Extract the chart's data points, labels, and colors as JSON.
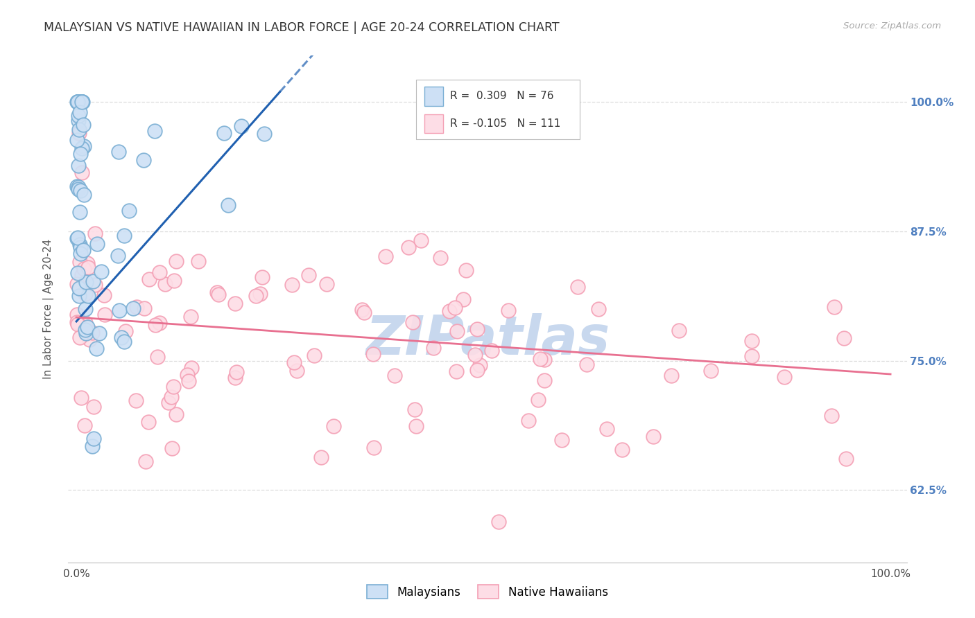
{
  "title": "MALAYSIAN VS NATIVE HAWAIIAN IN LABOR FORCE | AGE 20-24 CORRELATION CHART",
  "source": "Source: ZipAtlas.com",
  "ylabel": "In Labor Force | Age 20-24",
  "xlim": [
    -0.01,
    1.02
  ],
  "ylim": [
    0.555,
    1.045
  ],
  "yticks": [
    0.625,
    0.75,
    0.875,
    1.0
  ],
  "ytick_labels": [
    "62.5%",
    "75.0%",
    "87.5%",
    "100.0%"
  ],
  "xticks": [
    0.0,
    0.25,
    0.5,
    0.75,
    1.0
  ],
  "xtick_labels": [
    "0.0%",
    "",
    "",
    "",
    "100.0%"
  ],
  "legend_labels": [
    "Malaysians",
    "Native Hawaiians"
  ],
  "blue_R": 0.309,
  "blue_N": 76,
  "pink_R": -0.105,
  "pink_N": 111,
  "blue_marker_face": "#cde0f5",
  "blue_marker_edge": "#7bafd4",
  "pink_marker_face": "#fddde6",
  "pink_marker_edge": "#f4a0b5",
  "blue_line_color": "#2060b0",
  "pink_line_color": "#e87090",
  "watermark": "ZIPatlas",
  "watermark_color": "#c8d8ee",
  "background_color": "#ffffff",
  "grid_color": "#dddddd",
  "title_color": "#333333",
  "axis_label_color": "#555555",
  "right_tick_color": "#5080c0",
  "blue_trend_x0": 0.0,
  "blue_trend_y0": 0.788,
  "blue_trend_x1": 0.25,
  "blue_trend_y1": 1.01,
  "pink_trend_x0": 0.0,
  "pink_trend_y0": 0.792,
  "pink_trend_x1": 1.0,
  "pink_trend_y1": 0.737
}
